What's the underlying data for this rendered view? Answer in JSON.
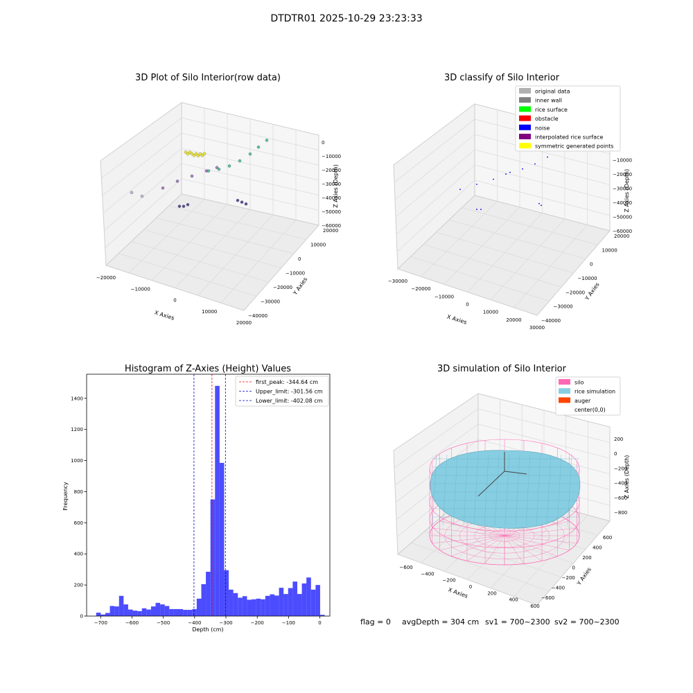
{
  "figure": {
    "suptitle": "DTDTR01 2025-10-29 23:23:33",
    "footer": {
      "flag": "flag = 0",
      "avg_depth": "avgDepth = 304 cm",
      "sv1": "sv1 = 700~2300",
      "sv2": "sv2 = 700~2300"
    }
  },
  "chart_data": [
    {
      "id": "raw3d",
      "type": "scatter",
      "title": "3D Plot of Silo Interior(row data)",
      "xlabel": "X Axies",
      "ylabel": "Y Axies",
      "zlabel": "Z Axies (Depth)",
      "x_ticks": [
        "−20000",
        "−10000",
        "0",
        "10000",
        "20000"
      ],
      "y_ticks": [
        "−40000",
        "−30000",
        "−20000",
        "−10000",
        "0",
        "10000",
        "20000"
      ],
      "z_ticks": [
        "0",
        "−10000",
        "−20000",
        "−30000",
        "−40000",
        "−50000",
        "−60000"
      ],
      "series": [
        {
          "color": "#e8e21a",
          "points": [
            [
              0.31,
              0.11,
              0.4
            ],
            [
              0.32,
              0.12,
              0.42
            ],
            [
              0.33,
              0.11,
              0.43
            ],
            [
              0.34,
              0.12,
              0.39
            ],
            [
              0.35,
              0.13,
              0.38
            ],
            [
              0.36,
              0.12,
              0.4
            ],
            [
              0.37,
              0.13,
              0.41
            ],
            [
              0.38,
              0.12,
              0.43
            ],
            [
              0.39,
              0.13,
              0.39
            ],
            [
              0.4,
              0.12,
              0.37
            ]
          ]
        },
        {
          "color": "#3fb59a",
          "points": [
            [
              0.42,
              0.22,
              0.36
            ],
            [
              0.47,
              0.21,
              0.38
            ],
            [
              0.52,
              0.19,
              0.4
            ],
            [
              0.57,
              0.16,
              0.41
            ],
            [
              0.62,
              0.12,
              0.42
            ],
            [
              0.66,
              0.08,
              0.43
            ],
            [
              0.7,
              0.04,
              0.44
            ]
          ]
        },
        {
          "color": "#8e6bb0",
          "points": [
            [
              0.2,
              0.31,
              0.58
            ],
            [
              0.27,
              0.27,
              0.6
            ],
            [
              0.34,
              0.24,
              0.61
            ],
            [
              0.41,
              0.21,
              0.62
            ],
            [
              0.46,
              0.19,
              0.63
            ]
          ]
        },
        {
          "color": "#3d3580",
          "points": [
            [
              0.28,
              0.41,
              0.72
            ],
            [
              0.3,
              0.41,
              0.72
            ],
            [
              0.32,
              0.4,
              0.73
            ],
            [
              0.56,
              0.38,
              0.62
            ],
            [
              0.58,
              0.39,
              0.62
            ],
            [
              0.6,
              0.4,
              0.63
            ]
          ]
        },
        {
          "color": "#a9a9c9",
          "points": [
            [
              0.05,
              0.34,
              0.48
            ],
            [
              0.1,
              0.36,
              0.52
            ]
          ]
        }
      ]
    },
    {
      "id": "classify3d",
      "type": "scatter",
      "title": "3D classify of Silo Interior",
      "xlabel": "X Axies",
      "ylabel": "Y Axies",
      "zlabel": "Z Axies (Depth)",
      "x_ticks": [
        "−30000",
        "−20000",
        "−10000",
        "0",
        "10000",
        "20000",
        "30000"
      ],
      "y_ticks": [
        "−40000",
        "−30000",
        "−20000",
        "−10000",
        "0",
        "10000",
        "20000"
      ],
      "z_ticks": [
        "0",
        "−10000",
        "−20000",
        "−30000",
        "−40000",
        "−50000",
        "−60000"
      ],
      "legend": [
        {
          "label": "original data",
          "color": "#b0b0b0"
        },
        {
          "label": "inner wall",
          "color": "#808080"
        },
        {
          "label": "rice surface",
          "color": "#00ff00"
        },
        {
          "label": "obstacle",
          "color": "#ff0000"
        },
        {
          "label": "noise",
          "color": "#0000ff"
        },
        {
          "label": "interpolated rice surface",
          "color": "#800080"
        },
        {
          "label": "symmetric generated points",
          "color": "#ffff00"
        }
      ],
      "series": [
        {
          "color": "#0000ff",
          "points": [
            [
              0.46,
              0.22,
              0.36
            ],
            [
              0.52,
              0.2,
              0.38
            ],
            [
              0.58,
              0.17,
              0.4
            ],
            [
              0.64,
              0.13,
              0.41
            ],
            [
              0.69,
              0.08,
              0.42
            ],
            [
              0.73,
              0.03,
              0.44
            ]
          ]
        },
        {
          "color": "#0000ff",
          "points": [
            [
              0.22,
              0.31,
              0.58
            ],
            [
              0.3,
              0.28,
              0.6
            ],
            [
              0.38,
              0.25,
              0.61
            ],
            [
              0.44,
              0.22,
              0.62
            ]
          ]
        },
        {
          "color": "#0000ff",
          "points": [
            [
              0.3,
              0.42,
              0.72
            ],
            [
              0.32,
              0.42,
              0.72
            ],
            [
              0.6,
              0.39,
              0.63
            ],
            [
              0.61,
              0.4,
              0.63
            ]
          ]
        }
      ]
    },
    {
      "id": "histogram",
      "type": "bar",
      "title": "Histogram of Z-Axies (Height) Values",
      "xlabel": "Depth (cm)",
      "ylabel": "Frequency",
      "xlim": [
        -745,
        32
      ],
      "ylim": [
        0,
        1555
      ],
      "x_ticks": [
        -700,
        -600,
        -500,
        -400,
        -300,
        -200,
        -100,
        0
      ],
      "y_ticks": [
        0,
        200,
        400,
        600,
        800,
        1000,
        1200,
        1400
      ],
      "bin_start": -714.5,
      "bin_width": 14.6,
      "values": [
        22,
        10,
        20,
        65,
        62,
        130,
        75,
        42,
        35,
        32,
        50,
        42,
        62,
        85,
        75,
        65,
        45,
        45,
        45,
        40,
        40,
        45,
        112,
        205,
        285,
        750,
        1480,
        985,
        295,
        170,
        148,
        118,
        128,
        105,
        108,
        112,
        108,
        130,
        140,
        132,
        182,
        142,
        180,
        222,
        142,
        210,
        248,
        170,
        200,
        8
      ],
      "bar_color": "#3333ff",
      "vlines": [
        {
          "label": "first_peak: -344.64 cm",
          "value": -344.64,
          "color": "#ff0000"
        },
        {
          "label": "Upper_limit: -301.56 cm",
          "value": -301.56,
          "color": "#0000cc"
        },
        {
          "label": "Lower_limit: -402.08 cm",
          "value": -402.08,
          "color": "#0000cc"
        }
      ]
    },
    {
      "id": "simulation3d",
      "type": "surface",
      "title": "3D simulation of Silo Interior",
      "xlabel": "X Axies",
      "ylabel": "Y Axies",
      "zlabel": "Z Axies (Depth)",
      "x_ticks": [
        "−600",
        "−400",
        "−200",
        "0",
        "200",
        "400",
        "600"
      ],
      "y_ticks": [
        "−600",
        "−400",
        "−200",
        "0",
        "200",
        "400",
        "600"
      ],
      "z_ticks": [
        "200",
        "0",
        "−200",
        "−400",
        "−600",
        "−800"
      ],
      "legend": [
        {
          "label": "silo",
          "color": "#ff69b4"
        },
        {
          "label": "rice simulation",
          "color": "#87cee2"
        },
        {
          "label": "auger",
          "color": "#ff4500"
        },
        {
          "label": "center(0,0)",
          "color": "#ffffff"
        }
      ]
    }
  ]
}
